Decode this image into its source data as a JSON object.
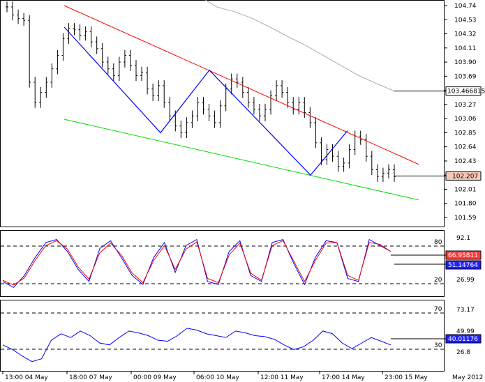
{
  "chart_data": [
    {
      "panel": "price",
      "type": "ohlc",
      "y_ticks": [
        "104.74",
        "104.53",
        "104.32",
        "104.11",
        "103.90",
        "103.69",
        "103.48",
        "103.27",
        "103.06",
        "102.85",
        "102.64",
        "102.43",
        "102.22",
        "102.01",
        "101.80",
        "101.59"
      ],
      "ylim": [
        101.5,
        104.8
      ],
      "price_samples": [
        104.72,
        104.6,
        104.55,
        104.52,
        103.6,
        103.3,
        103.45,
        103.6,
        103.8,
        104.0,
        104.25,
        104.4,
        104.38,
        104.3,
        104.35,
        104.2,
        104.1,
        103.9,
        103.8,
        103.7,
        103.9,
        104.0,
        103.85,
        103.7,
        103.75,
        103.5,
        103.4,
        103.55,
        103.3,
        103.1,
        102.95,
        102.85,
        103.0,
        103.1,
        103.3,
        103.2,
        103.1,
        103.0,
        103.25,
        103.5,
        103.65,
        103.6,
        103.45,
        103.3,
        103.2,
        103.1,
        103.2,
        103.4,
        103.55,
        103.45,
        103.3,
        103.2,
        103.3,
        103.15,
        103.0,
        102.7,
        102.45,
        102.6,
        102.5,
        102.35,
        102.4,
        102.6,
        102.8,
        102.75,
        102.5,
        102.3,
        102.2,
        102.25,
        102.3,
        102.2
      ],
      "current_price": "102.207",
      "ma_label": "103.466815",
      "ma_samples": [
        104.8,
        104.72,
        104.65,
        104.55,
        104.42,
        104.28,
        104.15,
        104.0,
        103.85,
        103.7,
        103.58,
        103.47
      ],
      "zigzag": [
        104.42,
        102.85,
        103.78,
        102.22,
        102.88
      ],
      "channel_upper": [
        104.74,
        102.38
      ],
      "channel_lower": [
        103.05,
        101.85
      ]
    },
    {
      "panel": "stochastic",
      "type": "line",
      "y_ticks": [
        "92.1",
        "26.99"
      ],
      "levels": [
        "80",
        "20"
      ],
      "ylim": [
        0,
        100
      ],
      "series": [
        {
          "color": "#0000ff",
          "values": [
            20,
            10,
            30,
            60,
            85,
            90,
            70,
            40,
            20,
            75,
            88,
            60,
            30,
            15,
            60,
            85,
            35,
            80,
            90,
            20,
            15,
            70,
            88,
            30,
            20,
            85,
            90,
            50,
            15,
            60,
            88,
            85,
            25,
            20,
            90,
            80,
            70
          ]
        },
        {
          "color": "#ff0000",
          "values": [
            22,
            14,
            26,
            55,
            80,
            88,
            74,
            44,
            24,
            68,
            84,
            64,
            34,
            18,
            55,
            80,
            40,
            74,
            86,
            25,
            18,
            64,
            84,
            34,
            22,
            80,
            88,
            54,
            20,
            55,
            84,
            85,
            30,
            22,
            85,
            82,
            70
          ]
        }
      ],
      "last_k": "51.14764",
      "last_d": "66.95811"
    },
    {
      "panel": "rsi",
      "type": "line",
      "y_ticks": [
        "73.17",
        "49.99",
        "26.8"
      ],
      "levels": [
        "70",
        "30"
      ],
      "ylim": [
        15,
        85
      ],
      "series": [
        {
          "color": "#0000ff",
          "values": [
            40,
            35,
            28,
            22,
            25,
            45,
            52,
            48,
            55,
            50,
            42,
            40,
            48,
            55,
            53,
            50,
            45,
            44,
            50,
            58,
            56,
            52,
            50,
            48,
            55,
            53,
            50,
            49,
            46,
            40,
            35,
            38,
            45,
            55,
            52,
            42,
            36,
            42,
            48,
            44,
            40
          ]
        }
      ],
      "last": "40.01176"
    }
  ],
  "x_ticks": [
    "13:00 04 May",
    "18:00 07 May",
    "00:00 09 May",
    "06:00 10 May",
    "12:00 11 May",
    "17:00 14 May",
    "23:00 15 May"
  ],
  "corner_label": "May 2012",
  "colors": {
    "up": "#000000",
    "ma": "#aaaaaa",
    "zigzag": "#0000ff",
    "upper": "#ff0000",
    "lower": "#00dd00"
  }
}
